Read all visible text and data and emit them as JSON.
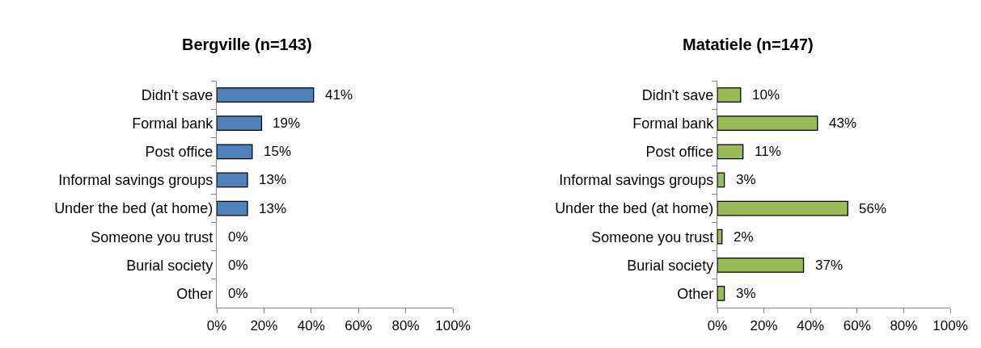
{
  "chart_data": [
    {
      "type": "bar",
      "orientation": "horizontal",
      "title": "Bergville (n=143)",
      "categories": [
        "Didn't save",
        "Formal bank",
        "Post office",
        "Informal savings groups",
        "Under the bed (at home)",
        "Someone you trust",
        "Burial society",
        "Other"
      ],
      "values": [
        41,
        19,
        15,
        13,
        13,
        0,
        0,
        0
      ],
      "value_labels": [
        "41%",
        "19%",
        "15%",
        "13%",
        "13%",
        "0%",
        "0%",
        "0%"
      ],
      "color": "#4f81bd",
      "xlim": [
        0,
        100
      ],
      "xticks": [
        {
          "value": 0,
          "label": "0%"
        },
        {
          "value": 20,
          "label": "20%"
        },
        {
          "value": 40,
          "label": "40%"
        },
        {
          "value": 60,
          "label": "60%"
        },
        {
          "value": 80,
          "label": "80%"
        },
        {
          "value": 100,
          "label": "100%"
        }
      ]
    },
    {
      "type": "bar",
      "orientation": "horizontal",
      "title": "Matatiele (n=147)",
      "categories": [
        "Didn't save",
        "Formal bank",
        "Post office",
        "Informal savings groups",
        "Under the bed (at home)",
        "Someone you trust",
        "Burial society",
        "Other"
      ],
      "values": [
        10,
        43,
        11,
        3,
        56,
        2,
        37,
        3
      ],
      "value_labels": [
        "10%",
        "43%",
        "11%",
        "3%",
        "56%",
        "2%",
        "37%",
        "3%"
      ],
      "color": "#9bbb59",
      "xlim": [
        0,
        100
      ],
      "xticks": [
        {
          "value": 0,
          "label": "0%"
        },
        {
          "value": 20,
          "label": "20%"
        },
        {
          "value": 40,
          "label": "40%"
        },
        {
          "value": 60,
          "label": "60%"
        },
        {
          "value": 80,
          "label": "80%"
        },
        {
          "value": 100,
          "label": "100%"
        }
      ]
    }
  ]
}
